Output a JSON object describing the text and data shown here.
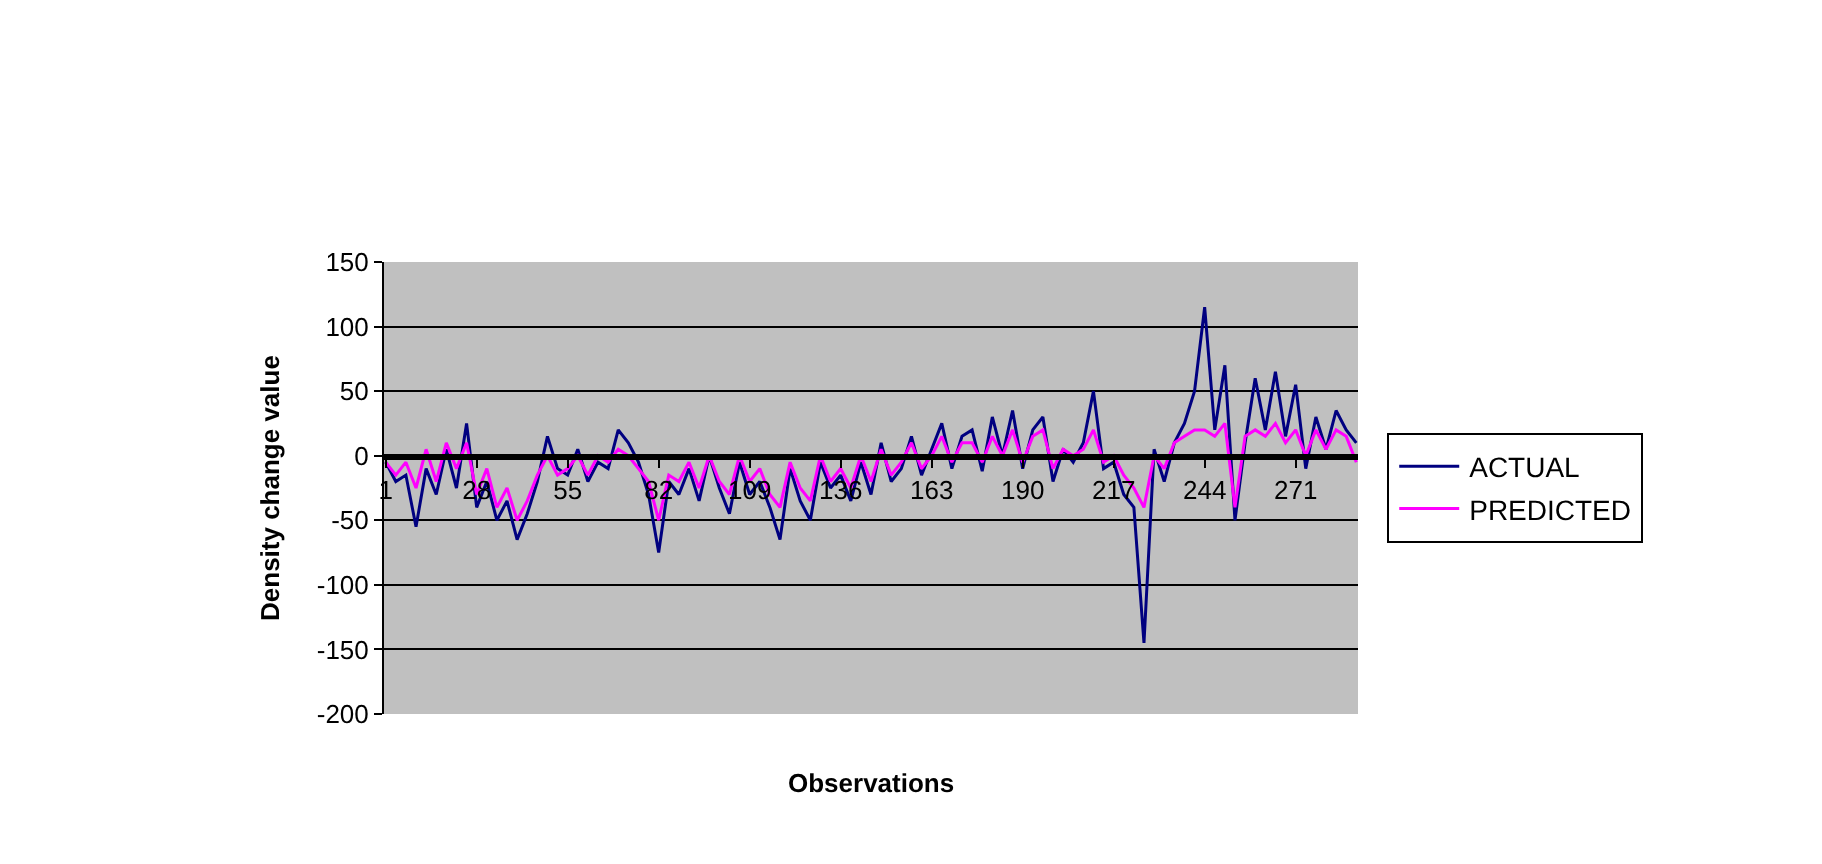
{
  "chart_data": {
    "type": "line",
    "xlabel": "Observations",
    "ylabel": "Density change value",
    "xlim": [
      0.5,
      289.5
    ],
    "xticks": [
      1,
      28,
      55,
      82,
      109,
      136,
      163,
      190,
      217,
      244,
      271
    ],
    "ylim": [
      -200,
      150
    ],
    "yticks": [
      -200,
      -150,
      -100,
      -50,
      0,
      50,
      100,
      150
    ],
    "grid": "y",
    "legend": "right",
    "marker": "none",
    "line_style": "solid",
    "series": [
      {
        "name": "ACTUAL",
        "color": "#000080",
        "x": [
          1,
          4,
          7,
          10,
          13,
          16,
          19,
          22,
          25,
          28,
          31,
          34,
          37,
          40,
          43,
          46,
          49,
          52,
          55,
          58,
          61,
          64,
          67,
          70,
          73,
          76,
          79,
          82,
          85,
          88,
          91,
          94,
          97,
          100,
          103,
          106,
          109,
          112,
          115,
          118,
          121,
          124,
          127,
          130,
          133,
          136,
          139,
          142,
          145,
          148,
          151,
          154,
          157,
          160,
          163,
          166,
          169,
          172,
          175,
          178,
          181,
          184,
          187,
          190,
          193,
          196,
          199,
          202,
          205,
          208,
          211,
          214,
          217,
          220,
          223,
          226,
          229,
          232,
          235,
          238,
          241,
          244,
          247,
          250,
          253,
          256,
          259,
          262,
          265,
          268,
          271,
          274,
          277,
          280,
          283,
          286,
          289
        ],
        "values": [
          -5,
          -20,
          -15,
          -55,
          -10,
          -30,
          5,
          -25,
          25,
          -40,
          -20,
          -50,
          -35,
          -65,
          -45,
          -20,
          15,
          -10,
          -15,
          5,
          -20,
          -5,
          -10,
          20,
          10,
          -5,
          -30,
          -75,
          -20,
          -30,
          -10,
          -35,
          0,
          -25,
          -45,
          -5,
          -30,
          -20,
          -40,
          -65,
          -10,
          -35,
          -50,
          -5,
          -25,
          -15,
          -35,
          -5,
          -30,
          10,
          -20,
          -10,
          15,
          -15,
          5,
          25,
          -10,
          15,
          20,
          -12,
          30,
          0,
          35,
          -10,
          20,
          30,
          -20,
          5,
          -5,
          10,
          50,
          -10,
          -5,
          -30,
          -40,
          -145,
          5,
          -20,
          10,
          25,
          50,
          115,
          20,
          70,
          -50,
          10,
          60,
          20,
          65,
          15,
          55,
          -10,
          30,
          5,
          35,
          20,
          10
        ]
      },
      {
        "name": "PREDICTED",
        "color": "#ff00ff",
        "x": [
          1,
          4,
          7,
          10,
          13,
          16,
          19,
          22,
          25,
          28,
          31,
          34,
          37,
          40,
          43,
          46,
          49,
          52,
          55,
          58,
          61,
          64,
          67,
          70,
          73,
          76,
          79,
          82,
          85,
          88,
          91,
          94,
          97,
          100,
          103,
          106,
          109,
          112,
          115,
          118,
          121,
          124,
          127,
          130,
          133,
          136,
          139,
          142,
          145,
          148,
          151,
          154,
          157,
          160,
          163,
          166,
          169,
          172,
          175,
          178,
          181,
          184,
          187,
          190,
          193,
          196,
          199,
          202,
          205,
          208,
          211,
          214,
          217,
          220,
          223,
          226,
          229,
          232,
          235,
          238,
          241,
          244,
          247,
          250,
          253,
          256,
          259,
          262,
          265,
          268,
          271,
          274,
          277,
          280,
          283,
          286,
          289
        ],
        "values": [
          -5,
          -15,
          -5,
          -25,
          5,
          -20,
          10,
          -10,
          10,
          -30,
          -10,
          -40,
          -25,
          -50,
          -35,
          -15,
          0,
          -15,
          -10,
          0,
          -15,
          0,
          -5,
          5,
          0,
          -10,
          -20,
          -50,
          -15,
          -20,
          -5,
          -25,
          0,
          -20,
          -30,
          0,
          -20,
          -10,
          -30,
          -40,
          -5,
          -25,
          -35,
          0,
          -20,
          -10,
          -25,
          0,
          -20,
          5,
          -15,
          -5,
          10,
          -10,
          0,
          15,
          -5,
          10,
          10,
          -5,
          15,
          0,
          20,
          -5,
          15,
          20,
          -10,
          5,
          0,
          5,
          20,
          -5,
          0,
          -15,
          -25,
          -40,
          0,
          -10,
          10,
          15,
          20,
          20,
          15,
          25,
          -40,
          15,
          20,
          15,
          25,
          10,
          20,
          0,
          20,
          5,
          20,
          15,
          -5
        ]
      }
    ]
  }
}
